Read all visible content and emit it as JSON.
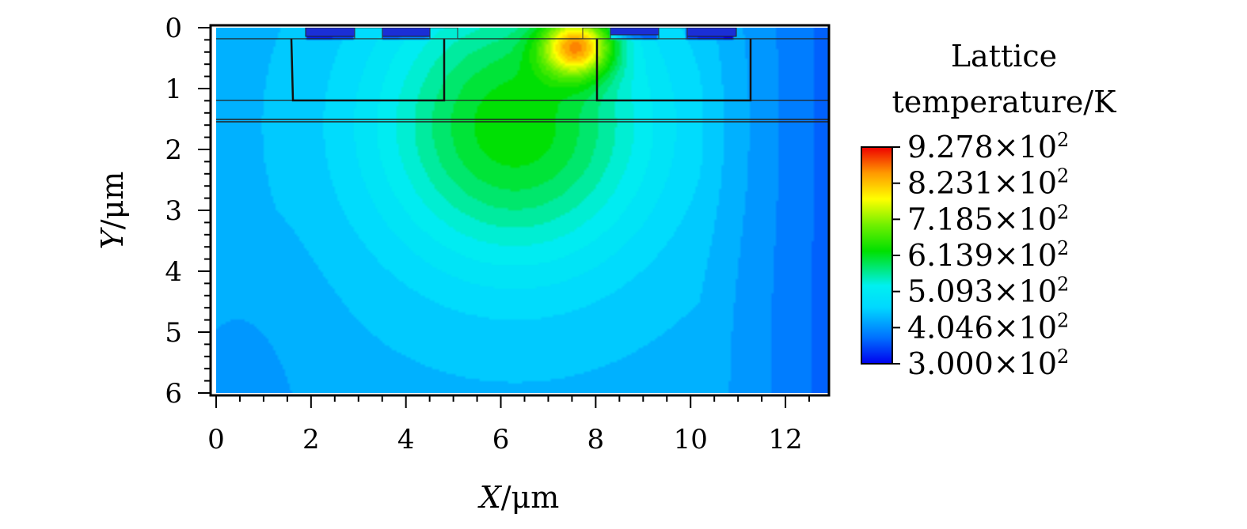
{
  "chart_data": {
    "type": "heatmap",
    "xlabel_var": "X",
    "xlabel_unit": "/μm",
    "ylabel_var": "Y",
    "ylabel_unit": "/μm",
    "xlim": [
      0,
      12.9
    ],
    "ylim": [
      6,
      0
    ],
    "x_ticks": [
      "0",
      "2",
      "4",
      "6",
      "8",
      "10",
      "12"
    ],
    "y_ticks": [
      "0",
      "1",
      "2",
      "3",
      "4",
      "5",
      "6"
    ],
    "colorbar": {
      "title_line1": "Lattice",
      "title_line2": "temperature/K",
      "min": 300.0,
      "max": 927.8,
      "levels": [
        {
          "mantissa": "9.278",
          "value": 927.8
        },
        {
          "mantissa": "8.231",
          "value": 823.1
        },
        {
          "mantissa": "7.185",
          "value": 718.5
        },
        {
          "mantissa": "6.139",
          "value": 613.9
        },
        {
          "mantissa": "5.093",
          "value": 509.3
        },
        {
          "mantissa": "4.046",
          "value": 404.6
        },
        {
          "mantissa": "3.000",
          "value": 300.0
        }
      ],
      "exponent_base": "×10",
      "exponent_power": "2"
    },
    "hotspot": {
      "x": 7.6,
      "y": 0.3,
      "value": 927.8
    },
    "background_value": 390,
    "annotations": []
  },
  "colors": {
    "background": "#ffffff",
    "axis": "#000000"
  }
}
